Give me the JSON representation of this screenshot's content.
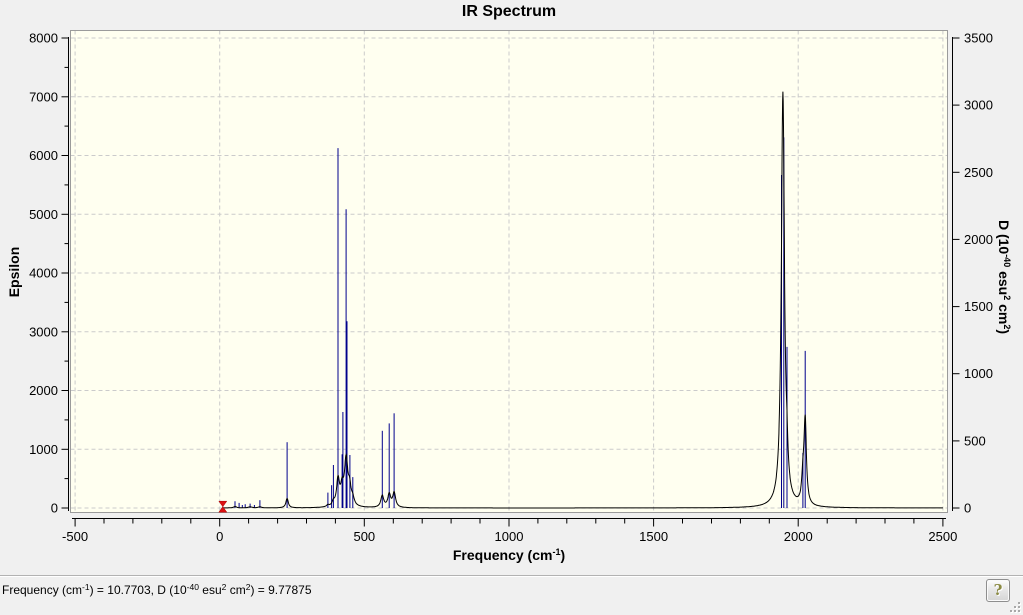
{
  "title": "IR Spectrum",
  "axis_titles": {
    "left": [
      {
        "t": "Epsilon"
      }
    ],
    "bottom": [
      {
        "t": "Frequency (cm"
      },
      {
        "t": "-1",
        "sup": true
      },
      {
        "t": ")"
      }
    ],
    "right": [
      {
        "t": "D (10"
      },
      {
        "t": "-40",
        "sup": true
      },
      {
        "t": " esu"
      },
      {
        "t": "2",
        "sup": true
      },
      {
        "t": " cm"
      },
      {
        "t": "2",
        "sup": true
      },
      {
        "t": ")"
      }
    ]
  },
  "status_bar": {
    "parts": [
      {
        "t": "Frequency (cm"
      },
      {
        "t": "-1",
        "sup": true
      },
      {
        "t": ") = 10.7703, D (10"
      },
      {
        "t": "-40",
        "sup": true
      },
      {
        "t": " esu"
      },
      {
        "t": "2",
        "sup": true
      },
      {
        "t": " cm"
      },
      {
        "t": "2",
        "sup": true
      },
      {
        "t": ") = 9.77875"
      }
    ],
    "help_label": "?"
  },
  "colors": {
    "window_bg": "#f0f0f0",
    "plot_bg": "#fffff0",
    "plot_border": "#9b9b9b",
    "grid": "#cbcbcb",
    "axis": "#000000",
    "stick": "#00008b",
    "curve": "#000000",
    "marker": "#dd1111"
  },
  "chart_data": {
    "type": "line",
    "subtype": "IR spectrum: stick series (D, right axis) + Lorentzian-broadened curve (Epsilon, left axis)",
    "title": "IR Spectrum",
    "xlabel": "Frequency (cm^-1)",
    "ylabel_left": "Epsilon",
    "ylabel_right": "D (10^-40 esu^2 cm^2)",
    "x_axis": {
      "range": [
        -500,
        2500
      ],
      "ticks": [
        -500,
        0,
        500,
        1000,
        1500,
        2000,
        2500
      ],
      "minor_step": 100
    },
    "y_left": {
      "range": [
        0,
        8000
      ],
      "ticks": [
        0,
        1000,
        2000,
        3000,
        4000,
        5000,
        6000,
        7000,
        8000
      ],
      "minor_step": 500
    },
    "y_right": {
      "range": [
        0,
        3500
      ],
      "ticks": [
        0,
        500,
        1000,
        1500,
        2000,
        2500,
        3000,
        3500
      ]
    },
    "grid": "dashed, at major ticks",
    "legend": "none",
    "series": [
      {
        "name": "D sticks (right axis)",
        "style": "stick",
        "points_freq_D": [
          [
            10.77,
            9.78
          ],
          [
            53,
            50
          ],
          [
            67,
            38
          ],
          [
            78,
            22
          ],
          [
            88,
            28
          ],
          [
            105,
            33
          ],
          [
            120,
            22
          ],
          [
            139,
            58
          ],
          [
            233,
            490
          ],
          [
            374,
            115
          ],
          [
            387,
            170
          ],
          [
            393,
            320
          ],
          [
            409,
            2680
          ],
          [
            423,
            400
          ],
          [
            426,
            715
          ],
          [
            437,
            2225
          ],
          [
            440,
            1390
          ],
          [
            450,
            395
          ],
          [
            460,
            230
          ],
          [
            562,
            575
          ],
          [
            586,
            630
          ],
          [
            603,
            705
          ],
          [
            1942,
            2480
          ],
          [
            1950,
            2760
          ],
          [
            1961,
            1200
          ],
          [
            2016,
            410
          ],
          [
            2024,
            1170
          ]
        ]
      },
      {
        "name": "Epsilon curve (left axis)",
        "style": "lorentzian_sum",
        "x_start": 10,
        "x_end": 2500,
        "peaks_freq_height_gamma": [
          [
            53,
            25,
            6
          ],
          [
            105,
            18,
            8
          ],
          [
            139,
            20,
            6
          ],
          [
            233,
            160,
            5
          ],
          [
            374,
            30,
            5
          ],
          [
            393,
            70,
            5
          ],
          [
            409,
            450,
            6
          ],
          [
            423,
            280,
            6
          ],
          [
            437,
            780,
            7
          ],
          [
            449,
            280,
            6
          ],
          [
            460,
            110,
            6
          ],
          [
            562,
            200,
            6
          ],
          [
            586,
            220,
            6
          ],
          [
            603,
            250,
            6
          ],
          [
            1947,
            7050,
            6.5
          ],
          [
            1961,
            400,
            4
          ],
          [
            2016,
            380,
            5
          ],
          [
            2024,
            1430,
            5
          ]
        ]
      }
    ],
    "marker": {
      "x": 10.7703,
      "y_right": 9.77875,
      "shape": "hourglass",
      "meaning": "selected point readout shown in status bar"
    }
  }
}
